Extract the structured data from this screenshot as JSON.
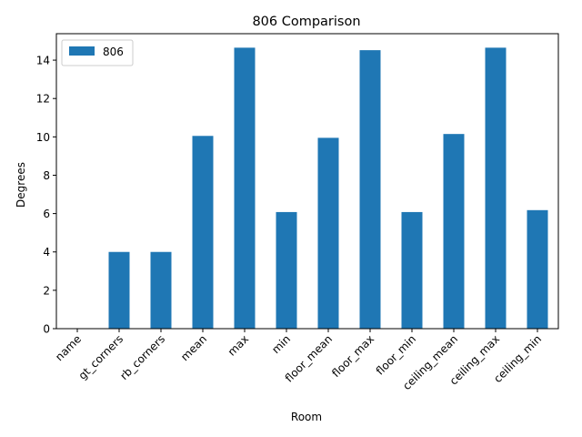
{
  "chart_data": {
    "type": "bar",
    "title": "806 Comparison",
    "xlabel": "Room",
    "ylabel": "Degrees",
    "categories": [
      "name",
      "gt_corners",
      "rb_corners",
      "mean",
      "max",
      "min",
      "floor_mean",
      "floor_max",
      "floor_min",
      "ceiling_mean",
      "ceiling_max",
      "ceiling_min"
    ],
    "series": [
      {
        "name": "806",
        "color": "#1f77b4",
        "values": [
          0,
          4,
          4,
          10.05,
          14.65,
          6.08,
          9.95,
          14.52,
          6.08,
          10.15,
          14.65,
          6.18
        ]
      }
    ],
    "ylim": [
      0,
      15.38
    ],
    "yticks": [
      0,
      2,
      4,
      6,
      8,
      10,
      12,
      14
    ],
    "grid": false,
    "legend": "top-left"
  }
}
